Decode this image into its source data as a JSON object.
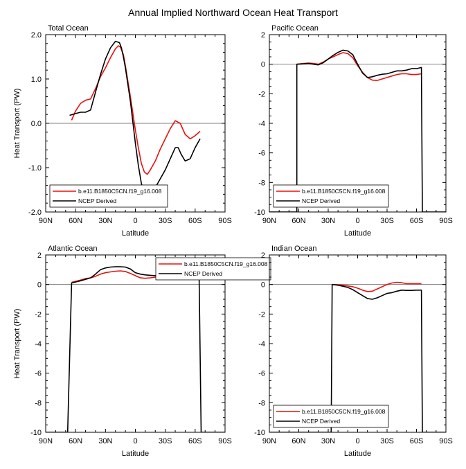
{
  "title": "Annual Implied Northward Ocean Heat Transport",
  "colors": {
    "model": "#e8100f",
    "obs": "#000000",
    "zero_line": "#808080"
  },
  "chart_data": [
    {
      "type": "line",
      "panel_title": "Total Ocean",
      "xlabel": "Latitude",
      "ylabel": "Heat Transport (PW)",
      "xlim": [
        -90,
        90
      ],
      "ylim": [
        -2.0,
        2.0
      ],
      "x_ticks": [
        -90,
        -60,
        -30,
        0,
        30,
        60,
        90
      ],
      "x_tick_labels": [
        "90N",
        "60N",
        "30N",
        "0",
        "30S",
        "60S",
        "90S"
      ],
      "y_ticks": [
        2,
        1,
        0,
        -1,
        -2
      ],
      "y_tick_labels": [
        "2.0",
        "1.0",
        "0.0",
        "-1.0",
        "-2.0"
      ],
      "legend": {
        "position": "bottom-left",
        "entries": [
          "b.e11.B1850C5CN.f19_g16.008",
          "NCEP Derived"
        ]
      },
      "series": [
        {
          "name": "b.e11.B1850C5CN.f19_g16.008",
          "x": [
            -64,
            -60,
            -55,
            -50,
            -45,
            -40,
            -35,
            -30,
            -25,
            -20,
            -17,
            -15,
            -12,
            -10,
            -5,
            0,
            3,
            6,
            9,
            12,
            15,
            20,
            25,
            30,
            35,
            40,
            45,
            50,
            55,
            60,
            65
          ],
          "y": [
            0.07,
            0.28,
            0.45,
            0.52,
            0.55,
            0.78,
            1.05,
            1.25,
            1.48,
            1.68,
            1.75,
            1.72,
            1.55,
            1.3,
            0.6,
            -0.15,
            -0.55,
            -0.9,
            -1.1,
            -1.15,
            -1.05,
            -0.85,
            -0.58,
            -0.35,
            -0.12,
            0.06,
            0.0,
            -0.25,
            -0.35,
            -0.28,
            -0.18
          ]
        },
        {
          "name": "NCEP Derived",
          "x": [
            -66,
            -60,
            -55,
            -50,
            -45,
            -40,
            -35,
            -30,
            -25,
            -20,
            -16,
            -14,
            -12,
            -10,
            -5,
            0,
            3,
            6,
            9,
            12,
            15,
            20,
            25,
            30,
            35,
            40,
            43,
            46,
            50,
            55,
            60,
            65
          ],
          "y": [
            0.18,
            0.22,
            0.25,
            0.25,
            0.3,
            0.7,
            1.1,
            1.45,
            1.7,
            1.85,
            1.82,
            1.7,
            1.5,
            1.25,
            0.5,
            -0.45,
            -0.95,
            -1.35,
            -1.6,
            -1.68,
            -1.62,
            -1.45,
            -1.25,
            -1.05,
            -0.8,
            -0.55,
            -0.55,
            -0.7,
            -0.85,
            -0.8,
            -0.55,
            -0.35
          ]
        }
      ]
    },
    {
      "type": "line",
      "panel_title": "Pacific Ocean",
      "xlabel": "Latitude",
      "ylabel": "",
      "xlim": [
        -90,
        90
      ],
      "ylim": [
        -10,
        2
      ],
      "x_ticks": [
        -90,
        -60,
        -30,
        0,
        30,
        60,
        90
      ],
      "x_tick_labels": [
        "90N",
        "60N",
        "30N",
        "0",
        "30S",
        "60S",
        "90S"
      ],
      "y_ticks": [
        2,
        0,
        -2,
        -4,
        -6,
        -8,
        -10
      ],
      "y_tick_labels": [
        "2",
        "0",
        "-2",
        "-4",
        "-6",
        "-8",
        "-10"
      ],
      "legend": {
        "position": "bottom-left",
        "entries": [
          "b.e11.B1850C5CN.f19_g16.008",
          "NCEP Derived"
        ]
      },
      "series": [
        {
          "name": "b.e11.B1850C5CN.f19_g16.008",
          "x": [
            -62,
            -55,
            -50,
            -45,
            -40,
            -35,
            -30,
            -25,
            -20,
            -15,
            -10,
            -5,
            0,
            5,
            10,
            15,
            20,
            25,
            30,
            35,
            40,
            45,
            50,
            55,
            60,
            65
          ],
          "y": [
            0.0,
            0.05,
            0.08,
            0.05,
            0.0,
            0.15,
            0.35,
            0.5,
            0.65,
            0.78,
            0.72,
            0.45,
            -0.1,
            -0.55,
            -0.9,
            -1.08,
            -1.1,
            -1.0,
            -0.9,
            -0.8,
            -0.7,
            -0.65,
            -0.65,
            -0.7,
            -0.7,
            -0.65
          ]
        },
        {
          "name": "NCEP Derived",
          "x": [
            -90,
            -62,
            -62,
            -55,
            -50,
            -45,
            -40,
            -35,
            -30,
            -25,
            -20,
            -15,
            -10,
            -5,
            0,
            5,
            10,
            15,
            20,
            25,
            30,
            35,
            40,
            45,
            50,
            55,
            60,
            65,
            66,
            90
          ],
          "y": [
            -10,
            -10,
            0.0,
            0.02,
            0.05,
            0.0,
            -0.05,
            0.1,
            0.35,
            0.6,
            0.8,
            0.95,
            0.9,
            0.65,
            0.0,
            -0.6,
            -0.9,
            -0.85,
            -0.75,
            -0.68,
            -0.65,
            -0.55,
            -0.45,
            -0.45,
            -0.4,
            -0.3,
            -0.3,
            -0.22,
            -10,
            -10
          ]
        }
      ]
    },
    {
      "type": "line",
      "panel_title": "Atlantic Ocean",
      "xlabel": "Latitude",
      "ylabel": "Heat Transport (PW)",
      "xlim": [
        -90,
        90
      ],
      "ylim": [
        -10,
        2
      ],
      "x_ticks": [
        -90,
        -60,
        -30,
        0,
        30,
        60,
        90
      ],
      "x_tick_labels": [
        "90N",
        "60N",
        "30N",
        "0",
        "30S",
        "60S",
        "90S"
      ],
      "y_ticks": [
        2,
        0,
        -2,
        -4,
        -6,
        -8,
        -10
      ],
      "y_tick_labels": [
        "2",
        "0",
        "-2",
        "-4",
        "-6",
        "-8",
        "-10"
      ],
      "legend": {
        "position": "top-right",
        "entries": [
          "b.e11.B1850C5CN.f19_g16.008",
          "NCEP Derived"
        ]
      },
      "series": [
        {
          "name": "b.e11.B1850C5CN.f19_g16.008",
          "x": [
            -64,
            -55,
            -50,
            -45,
            -40,
            -35,
            -30,
            -25,
            -20,
            -15,
            -10,
            -5,
            0,
            5,
            10,
            15,
            20,
            25,
            30,
            35,
            40,
            45,
            50,
            55,
            60,
            65
          ],
          "y": [
            0.15,
            0.3,
            0.4,
            0.45,
            0.55,
            0.7,
            0.8,
            0.85,
            0.9,
            0.92,
            0.88,
            0.75,
            0.6,
            0.45,
            0.42,
            0.45,
            0.5,
            0.52,
            0.55,
            0.55,
            0.6,
            0.62,
            0.55,
            0.5,
            0.45,
            0.42
          ]
        },
        {
          "name": "NCEP Derived",
          "x": [
            -90,
            -68,
            -64,
            -55,
            -50,
            -45,
            -40,
            -35,
            -30,
            -25,
            -20,
            -15,
            -10,
            -5,
            0,
            5,
            10,
            15,
            20,
            25,
            30,
            35,
            40,
            45,
            50,
            55,
            60,
            64,
            66,
            90
          ],
          "y": [
            -10,
            -10,
            0.1,
            0.25,
            0.35,
            0.45,
            0.7,
            1.0,
            1.12,
            1.18,
            1.2,
            1.2,
            1.18,
            1.05,
            0.8,
            0.7,
            0.65,
            0.62,
            0.6,
            0.6,
            0.62,
            0.62,
            0.65,
            0.65,
            0.6,
            0.5,
            0.45,
            0.4,
            -10,
            -10
          ]
        }
      ]
    },
    {
      "type": "line",
      "panel_title": "Indian Ocean",
      "xlabel": "Latitude",
      "ylabel": "",
      "xlim": [
        -90,
        90
      ],
      "ylim": [
        -10,
        2
      ],
      "x_ticks": [
        -90,
        -60,
        -30,
        0,
        30,
        60,
        90
      ],
      "x_tick_labels": [
        "90N",
        "60N",
        "30N",
        "0",
        "30S",
        "60S",
        "90S"
      ],
      "y_ticks": [
        2,
        0,
        -2,
        -4,
        -6,
        -8,
        -10
      ],
      "y_tick_labels": [
        "2",
        "0",
        "-2",
        "-4",
        "-6",
        "-8",
        "-10"
      ],
      "legend": {
        "position": "bottom-left",
        "entries": [
          "b.e11.B1850C5CN.f19_g16.008",
          "NCEP Derived"
        ]
      },
      "series": [
        {
          "name": "b.e11.B1850C5CN.f19_g16.008",
          "x": [
            -26,
            -20,
            -15,
            -10,
            -5,
            0,
            5,
            10,
            15,
            20,
            25,
            30,
            35,
            40,
            45,
            50,
            55,
            60,
            65
          ],
          "y": [
            0.0,
            -0.02,
            -0.05,
            -0.1,
            -0.15,
            -0.25,
            -0.38,
            -0.48,
            -0.45,
            -0.3,
            -0.15,
            0.0,
            0.1,
            0.15,
            0.12,
            0.05,
            0.05,
            0.05,
            0.05
          ]
        },
        {
          "name": "NCEP Derived",
          "x": [
            -90,
            -27,
            -26,
            -20,
            -15,
            -10,
            -5,
            0,
            5,
            10,
            15,
            20,
            25,
            30,
            35,
            40,
            45,
            50,
            55,
            60,
            65,
            66,
            90
          ],
          "y": [
            -10,
            -10,
            0.0,
            -0.05,
            -0.12,
            -0.2,
            -0.35,
            -0.55,
            -0.75,
            -0.95,
            -1.0,
            -0.9,
            -0.75,
            -0.6,
            -0.55,
            -0.45,
            -0.38,
            -0.4,
            -0.4,
            -0.38,
            -0.38,
            -10,
            -10
          ]
        }
      ]
    }
  ]
}
